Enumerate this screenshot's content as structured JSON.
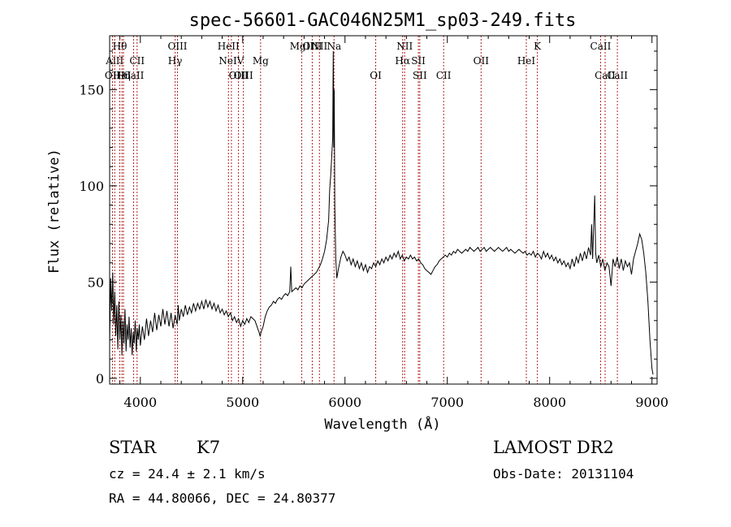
{
  "chart_data": {
    "type": "line",
    "title": "spec-56601-GAC046N25M1_sp03-249.fits",
    "xlabel": "Wavelength (Å)",
    "ylabel": "Flux (relative)",
    "xlim": [
      3700,
      9050
    ],
    "ylim": [
      -3,
      178
    ],
    "x_ticks": [
      4000,
      5000,
      6000,
      7000,
      8000,
      9000
    ],
    "y_ticks": [
      0,
      50,
      100,
      150
    ],
    "series": [
      {
        "points": [
          [
            3700,
            18
          ],
          [
            3710,
            52
          ],
          [
            3720,
            35
          ],
          [
            3730,
            55
          ],
          [
            3740,
            28
          ],
          [
            3750,
            45
          ],
          [
            3760,
            22
          ],
          [
            3770,
            38
          ],
          [
            3780,
            15
          ],
          [
            3790,
            40
          ],
          [
            3800,
            20
          ],
          [
            3810,
            33
          ],
          [
            3820,
            12
          ],
          [
            3830,
            30
          ],
          [
            3840,
            18
          ],
          [
            3850,
            36
          ],
          [
            3860,
            14
          ],
          [
            3870,
            28
          ],
          [
            3880,
            20
          ],
          [
            3890,
            32
          ],
          [
            3900,
            16
          ],
          [
            3910,
            26
          ],
          [
            3920,
            12
          ],
          [
            3930,
            24
          ],
          [
            3940,
            18
          ],
          [
            3950,
            30
          ],
          [
            3960,
            14
          ],
          [
            3970,
            26
          ],
          [
            3980,
            20
          ],
          [
            3990,
            28
          ],
          [
            4000,
            17
          ],
          [
            4020,
            27
          ],
          [
            4040,
            20
          ],
          [
            4060,
            31
          ],
          [
            4080,
            22
          ],
          [
            4100,
            30
          ],
          [
            4120,
            24
          ],
          [
            4140,
            34
          ],
          [
            4160,
            25
          ],
          [
            4180,
            33
          ],
          [
            4200,
            27
          ],
          [
            4220,
            36
          ],
          [
            4240,
            28
          ],
          [
            4260,
            35
          ],
          [
            4280,
            27
          ],
          [
            4300,
            34
          ],
          [
            4320,
            26
          ],
          [
            4340,
            33
          ],
          [
            4360,
            28
          ],
          [
            4370,
            38
          ],
          [
            4380,
            30
          ],
          [
            4400,
            36
          ],
          [
            4420,
            32
          ],
          [
            4440,
            38
          ],
          [
            4460,
            33
          ],
          [
            4480,
            37
          ],
          [
            4500,
            34
          ],
          [
            4520,
            39
          ],
          [
            4540,
            35
          ],
          [
            4560,
            39
          ],
          [
            4580,
            36
          ],
          [
            4600,
            40
          ],
          [
            4620,
            36
          ],
          [
            4640,
            41
          ],
          [
            4660,
            37
          ],
          [
            4680,
            40
          ],
          [
            4700,
            36
          ],
          [
            4720,
            39
          ],
          [
            4740,
            35
          ],
          [
            4760,
            38
          ],
          [
            4780,
            34
          ],
          [
            4800,
            36
          ],
          [
            4820,
            33
          ],
          [
            4840,
            35
          ],
          [
            4860,
            32
          ],
          [
            4880,
            34
          ],
          [
            4900,
            30
          ],
          [
            4920,
            32
          ],
          [
            4940,
            29
          ],
          [
            4960,
            31
          ],
          [
            4980,
            27
          ],
          [
            5000,
            30
          ],
          [
            5020,
            28
          ],
          [
            5040,
            31
          ],
          [
            5060,
            29
          ],
          [
            5080,
            32
          ],
          [
            5100,
            31
          ],
          [
            5120,
            30
          ],
          [
            5140,
            27
          ],
          [
            5160,
            24
          ],
          [
            5170,
            22
          ],
          [
            5180,
            24
          ],
          [
            5200,
            27
          ],
          [
            5220,
            32
          ],
          [
            5240,
            35
          ],
          [
            5260,
            37
          ],
          [
            5280,
            38
          ],
          [
            5300,
            40
          ],
          [
            5320,
            39
          ],
          [
            5340,
            41
          ],
          [
            5360,
            42
          ],
          [
            5380,
            41
          ],
          [
            5400,
            43
          ],
          [
            5420,
            44
          ],
          [
            5440,
            43
          ],
          [
            5460,
            45
          ],
          [
            5470,
            58
          ],
          [
            5480,
            45
          ],
          [
            5500,
            46
          ],
          [
            5520,
            47
          ],
          [
            5540,
            46
          ],
          [
            5560,
            48
          ],
          [
            5580,
            47
          ],
          [
            5600,
            49
          ],
          [
            5620,
            50
          ],
          [
            5640,
            51
          ],
          [
            5660,
            52
          ],
          [
            5680,
            53
          ],
          [
            5700,
            54
          ],
          [
            5720,
            55
          ],
          [
            5740,
            57
          ],
          [
            5760,
            59
          ],
          [
            5780,
            62
          ],
          [
            5800,
            66
          ],
          [
            5820,
            72
          ],
          [
            5840,
            82
          ],
          [
            5850,
            98
          ],
          [
            5860,
            105
          ],
          [
            5870,
            115
          ],
          [
            5880,
            125
          ],
          [
            5885,
            170
          ],
          [
            5890,
            120
          ],
          [
            5895,
            150
          ],
          [
            5900,
            90
          ],
          [
            5910,
            62
          ],
          [
            5920,
            52
          ],
          [
            5930,
            55
          ],
          [
            5940,
            58
          ],
          [
            5960,
            63
          ],
          [
            5980,
            66
          ],
          [
            6000,
            64
          ],
          [
            6020,
            61
          ],
          [
            6040,
            63
          ],
          [
            6060,
            59
          ],
          [
            6080,
            62
          ],
          [
            6100,
            58
          ],
          [
            6120,
            61
          ],
          [
            6140,
            57
          ],
          [
            6160,
            60
          ],
          [
            6180,
            56
          ],
          [
            6200,
            59
          ],
          [
            6220,
            55
          ],
          [
            6240,
            58
          ],
          [
            6260,
            57
          ],
          [
            6280,
            60
          ],
          [
            6300,
            58
          ],
          [
            6320,
            61
          ],
          [
            6340,
            59
          ],
          [
            6360,
            62
          ],
          [
            6380,
            60
          ],
          [
            6400,
            63
          ],
          [
            6420,
            61
          ],
          [
            6440,
            64
          ],
          [
            6460,
            62
          ],
          [
            6480,
            65
          ],
          [
            6500,
            63
          ],
          [
            6520,
            66
          ],
          [
            6540,
            62
          ],
          [
            6560,
            64
          ],
          [
            6580,
            61
          ],
          [
            6600,
            63
          ],
          [
            6620,
            62
          ],
          [
            6640,
            64
          ],
          [
            6660,
            62
          ],
          [
            6680,
            63
          ],
          [
            6700,
            61
          ],
          [
            6720,
            62
          ],
          [
            6740,
            60
          ],
          [
            6760,
            59
          ],
          [
            6780,
            57
          ],
          [
            6800,
            56
          ],
          [
            6820,
            55
          ],
          [
            6840,
            54
          ],
          [
            6860,
            56
          ],
          [
            6880,
            58
          ],
          [
            6900,
            59
          ],
          [
            6920,
            61
          ],
          [
            6940,
            62
          ],
          [
            6960,
            63
          ],
          [
            6980,
            64
          ],
          [
            7000,
            63
          ],
          [
            7020,
            65
          ],
          [
            7040,
            64
          ],
          [
            7060,
            66
          ],
          [
            7080,
            65
          ],
          [
            7100,
            67
          ],
          [
            7120,
            66
          ],
          [
            7140,
            65
          ],
          [
            7160,
            66
          ],
          [
            7180,
            67
          ],
          [
            7200,
            66
          ],
          [
            7220,
            68
          ],
          [
            7240,
            67
          ],
          [
            7260,
            66
          ],
          [
            7280,
            67
          ],
          [
            7300,
            68
          ],
          [
            7320,
            66
          ],
          [
            7340,
            67
          ],
          [
            7360,
            68
          ],
          [
            7380,
            66
          ],
          [
            7400,
            67
          ],
          [
            7420,
            68
          ],
          [
            7440,
            67
          ],
          [
            7460,
            66
          ],
          [
            7480,
            67
          ],
          [
            7500,
            68
          ],
          [
            7520,
            67
          ],
          [
            7540,
            66
          ],
          [
            7560,
            67
          ],
          [
            7580,
            68
          ],
          [
            7600,
            66
          ],
          [
            7620,
            67
          ],
          [
            7640,
            66
          ],
          [
            7660,
            65
          ],
          [
            7680,
            66
          ],
          [
            7700,
            67
          ],
          [
            7720,
            66
          ],
          [
            7740,
            65
          ],
          [
            7760,
            66
          ],
          [
            7780,
            64
          ],
          [
            7800,
            65
          ],
          [
            7820,
            64
          ],
          [
            7840,
            66
          ],
          [
            7860,
            63
          ],
          [
            7880,
            65
          ],
          [
            7900,
            64
          ],
          [
            7920,
            62
          ],
          [
            7940,
            66
          ],
          [
            7960,
            63
          ],
          [
            7980,
            65
          ],
          [
            8000,
            62
          ],
          [
            8020,
            64
          ],
          [
            8040,
            61
          ],
          [
            8060,
            63
          ],
          [
            8080,
            60
          ],
          [
            8100,
            62
          ],
          [
            8120,
            59
          ],
          [
            8140,
            61
          ],
          [
            8160,
            58
          ],
          [
            8180,
            60
          ],
          [
            8200,
            57
          ],
          [
            8220,
            62
          ],
          [
            8240,
            58
          ],
          [
            8260,
            63
          ],
          [
            8280,
            60
          ],
          [
            8300,
            65
          ],
          [
            8320,
            61
          ],
          [
            8340,
            66
          ],
          [
            8360,
            62
          ],
          [
            8380,
            68
          ],
          [
            8400,
            64
          ],
          [
            8410,
            80
          ],
          [
            8420,
            62
          ],
          [
            8440,
            95
          ],
          [
            8450,
            65
          ],
          [
            8460,
            60
          ],
          [
            8480,
            64
          ],
          [
            8500,
            58
          ],
          [
            8520,
            62
          ],
          [
            8540,
            56
          ],
          [
            8560,
            60
          ],
          [
            8580,
            58
          ],
          [
            8600,
            48
          ],
          [
            8620,
            62
          ],
          [
            8640,
            58
          ],
          [
            8660,
            63
          ],
          [
            8680,
            57
          ],
          [
            8700,
            62
          ],
          [
            8720,
            56
          ],
          [
            8740,
            61
          ],
          [
            8760,
            58
          ],
          [
            8780,
            60
          ],
          [
            8800,
            54
          ],
          [
            8820,
            62
          ],
          [
            8840,
            66
          ],
          [
            8860,
            70
          ],
          [
            8880,
            75
          ],
          [
            8900,
            72
          ],
          [
            8920,
            65
          ],
          [
            8940,
            55
          ],
          [
            8960,
            40
          ],
          [
            8980,
            20
          ],
          [
            9000,
            5
          ],
          [
            9010,
            2
          ]
        ]
      }
    ],
    "line_color": "#000000",
    "marker_color": "#b22222",
    "grid": false
  },
  "line_markers": [
    {
      "wl": 3728,
      "label": "OII",
      "row": 3
    },
    {
      "wl": 3750,
      "label": "AlII",
      "row": 2
    },
    {
      "wl": 3799,
      "label": "Hθ",
      "row": 1
    },
    {
      "wl": 3820,
      "label": "HeI",
      "row": 3
    },
    {
      "wl": 3835,
      "label": "Hη",
      "row": 3
    },
    {
      "wl": 3934,
      "label": "CaII",
      "row": 3
    },
    {
      "wl": 3968,
      "label": "CII",
      "row": 2
    },
    {
      "wl": 4340,
      "label": "Hγ",
      "row": 2
    },
    {
      "wl": 4363,
      "label": "OIII",
      "row": 1
    },
    {
      "wl": 4861,
      "label": "HeII",
      "row": 1
    },
    {
      "wl": 4890,
      "label": "NeIV",
      "row": 2
    },
    {
      "wl": 4959,
      "label": "OIII",
      "row": 3
    },
    {
      "wl": 5007,
      "label": "OIII",
      "row": 3
    },
    {
      "wl": 5175,
      "label": "Mg",
      "row": 2
    },
    {
      "wl": 5577,
      "label": "MgII",
      "row": 1
    },
    {
      "wl": 5680,
      "label": "OIII",
      "row": 1
    },
    {
      "wl": 5750,
      "label": "NII",
      "row": 1
    },
    {
      "wl": 5893,
      "label": "Na",
      "row": 1
    },
    {
      "wl": 6300,
      "label": "OI",
      "row": 3
    },
    {
      "wl": 6563,
      "label": "Hα",
      "row": 2
    },
    {
      "wl": 6583,
      "label": "NII",
      "row": 1
    },
    {
      "wl": 6717,
      "label": "SII",
      "row": 2
    },
    {
      "wl": 6731,
      "label": "SII",
      "row": 3
    },
    {
      "wl": 6964,
      "label": "CII",
      "row": 3
    },
    {
      "wl": 7330,
      "label": "OII",
      "row": 2
    },
    {
      "wl": 7772,
      "label": "HeI",
      "row": 2
    },
    {
      "wl": 7880,
      "label": "K",
      "row": 1
    },
    {
      "wl": 8498,
      "label": "CaII",
      "row": 1
    },
    {
      "wl": 8542,
      "label": "CaII",
      "row": 3
    },
    {
      "wl": 8662,
      "label": "CaII",
      "row": 3
    }
  ],
  "info": {
    "star": "STAR",
    "subclass": "K7",
    "survey": "LAMOST DR2",
    "cz": "cz = 24.4 ± 2.1 km/s",
    "obs_date": "Obs-Date: 20131104",
    "radec": "RA =  44.80066, DEC =  24.80377"
  }
}
